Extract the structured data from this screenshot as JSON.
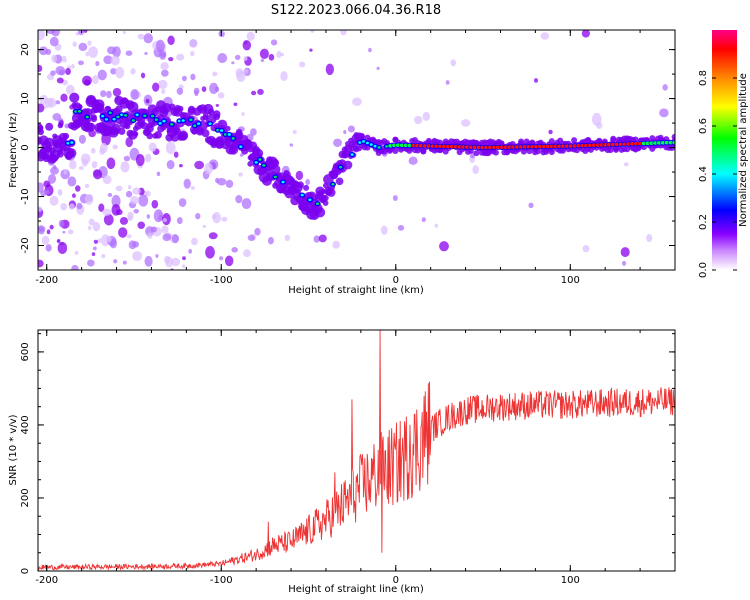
{
  "title": "S122.2023.066.04.36.R18",
  "chart_data": [
    {
      "type": "heatmap",
      "xlabel": "Height of straight line (km)",
      "ylabel": "Frequency (Hz)",
      "xlim": [
        -205,
        160
      ],
      "ylim": [
        -25,
        24
      ],
      "x_ticks": [
        -200,
        -100,
        0,
        100
      ],
      "x_tick_labels": [
        "-200",
        "-100",
        "0",
        "100"
      ],
      "y_ticks": [
        -20,
        -10,
        0,
        10,
        20
      ],
      "y_tick_labels": [
        "-20",
        "-10",
        "0",
        "10",
        "20"
      ],
      "colorbar": {
        "label": "Normalized spectral amplitude",
        "ticks": [
          0.0,
          0.2,
          0.4,
          0.6,
          0.8
        ],
        "tick_labels": [
          "0.0",
          "0.2",
          "0.4",
          "0.6",
          "0.8"
        ],
        "range": [
          0,
          1
        ],
        "colormap": [
          "#ffffff",
          "#cc88ff",
          "#8800ff",
          "#0000ff",
          "#00ffff",
          "#00ff00",
          "#ffff00",
          "#ff8800",
          "#ff0000",
          "#ff00aa"
        ]
      },
      "ridge": {
        "description_points": [
          {
            "x": -185,
            "y": 7
          },
          {
            "x": -150,
            "y": 6
          },
          {
            "x": -110,
            "y": 5
          },
          {
            "x": -90,
            "y": 1
          },
          {
            "x": -75,
            "y": -4
          },
          {
            "x": -60,
            "y": -8
          },
          {
            "x": -45,
            "y": -12
          },
          {
            "x": -38,
            "y": -8
          },
          {
            "x": -28,
            "y": -2
          },
          {
            "x": -20,
            "y": 1.5
          },
          {
            "x": -10,
            "y": 0
          },
          {
            "x": 0,
            "y": 0.5
          },
          {
            "x": 50,
            "y": 0
          },
          {
            "x": 100,
            "y": 0.3
          },
          {
            "x": 155,
            "y": 1
          }
        ]
      },
      "grid": false
    },
    {
      "type": "line",
      "xlabel": "Height of straight line (km)",
      "ylabel": "SNR (10 * v/v)",
      "xlim": [
        -205,
        160
      ],
      "ylim": [
        0,
        660
      ],
      "x_ticks": [
        -200,
        -100,
        0,
        100
      ],
      "x_tick_labels": [
        "-200",
        "-100",
        "0",
        "100"
      ],
      "y_ticks": [
        0,
        200,
        400,
        600
      ],
      "y_tick_labels": [
        "0",
        "200",
        "400",
        "600"
      ],
      "series_color": "#ee3333",
      "envelope": {
        "x": [
          -205,
          -150,
          -120,
          -100,
          -80,
          -70,
          -60,
          -50,
          -40,
          -30,
          -20,
          -10,
          0,
          10,
          20,
          30,
          40,
          60,
          80,
          100,
          120,
          140,
          160
        ],
        "y": [
          10,
          12,
          14,
          20,
          45,
          70,
          80,
          110,
          140,
          180,
          230,
          270,
          290,
          330,
          390,
          420,
          440,
          450,
          455,
          455,
          460,
          462,
          465
        ]
      },
      "spikes": [
        {
          "x": -73,
          "y": 135
        },
        {
          "x": -35,
          "y": 270
        },
        {
          "x": -25,
          "y": 470
        },
        {
          "x": -9,
          "y": 660
        },
        {
          "x": -8,
          "y": 50
        },
        {
          "x": 8,
          "y": 400
        }
      ],
      "grid": false
    }
  ]
}
